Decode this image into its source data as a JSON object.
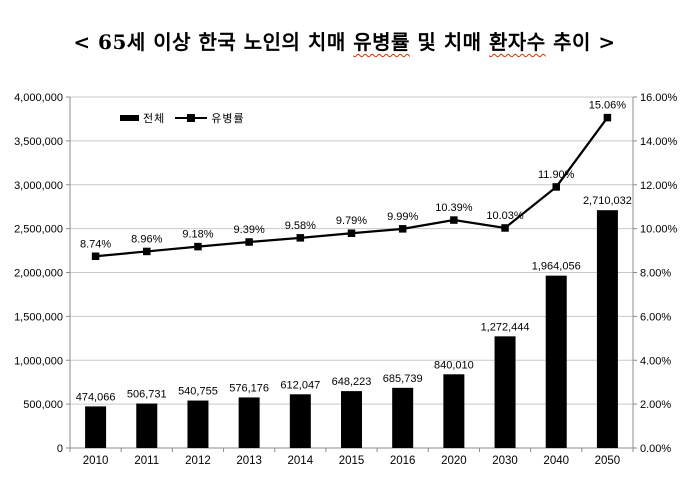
{
  "title": {
    "prefix": "< 65세 이상 한국 노인의 치매 ",
    "misspelled_word_1": "유병률",
    "middle": " 및 치매 ",
    "misspelled_word_2": "환자수",
    "suffix": " 추이 >",
    "squiggle_color": "#cc3300"
  },
  "chart_data": {
    "type": "bar+line combo",
    "categories": [
      "2010",
      "2011",
      "2012",
      "2013",
      "2014",
      "2015",
      "2016",
      "2020",
      "2030",
      "2040",
      "2050"
    ],
    "series": [
      {
        "name": "전체",
        "type": "bar",
        "axis": "left",
        "color": "#000000",
        "values": [
          474066,
          506731,
          540755,
          576176,
          612047,
          648223,
          685739,
          840010,
          1272444,
          1964056,
          2710032
        ],
        "labels": [
          "474,066",
          "506,731",
          "540,755",
          "576,176",
          "612,047",
          "648,223",
          "685,739",
          "840,010",
          "1,272,444",
          "1,964,056",
          "2,710,032"
        ]
      },
      {
        "name": "유병률",
        "type": "line",
        "axis": "right",
        "color": "#000000",
        "values": [
          8.74,
          8.96,
          9.18,
          9.39,
          9.58,
          9.79,
          9.99,
          10.39,
          10.03,
          11.9,
          15.06
        ],
        "labels": [
          "8.74%",
          "8.96%",
          "9.18%",
          "9.39%",
          "9.58%",
          "9.79%",
          "9.99%",
          "10.39%",
          "10.03%",
          "11.90%",
          "15.06%"
        ]
      }
    ],
    "left_axis": {
      "min": 0,
      "max": 4000000,
      "step": 500000,
      "tick_labels": [
        "0",
        "500,000",
        "1,000,000",
        "1,500,000",
        "2,000,000",
        "2,500,000",
        "3,000,000",
        "3,500,000",
        "4,000,000"
      ]
    },
    "right_axis": {
      "min": 0,
      "max": 16,
      "step": 2,
      "tick_labels": [
        "0.00%",
        "2.00%",
        "4.00%",
        "6.00%",
        "8.00%",
        "10.00%",
        "12.00%",
        "14.00%",
        "16.00%"
      ]
    },
    "grid": "horizontal",
    "gridline_color": "#c9c9c9",
    "axis_color": "#8c8c8c",
    "text_color": "#000000",
    "legend_position": "top-left-inside"
  }
}
